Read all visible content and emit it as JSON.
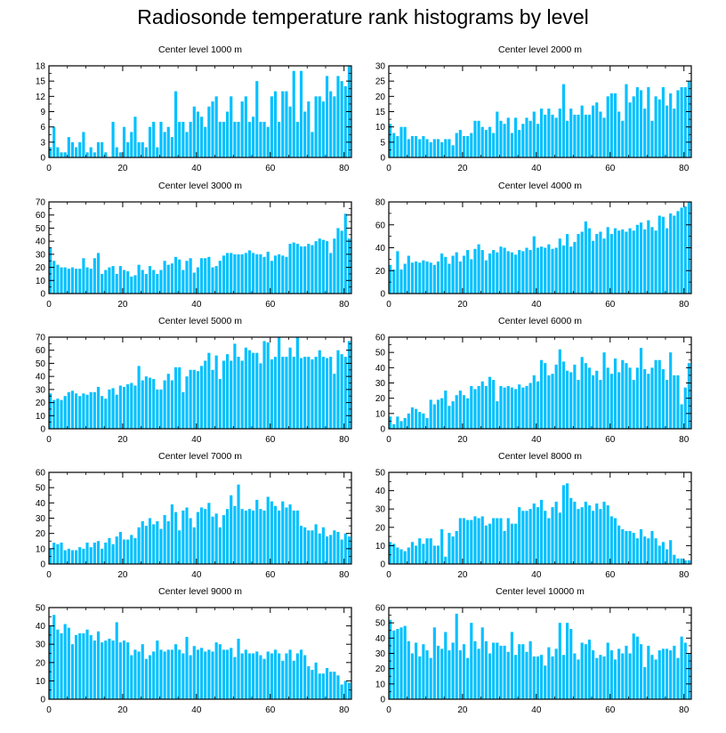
{
  "title": "Radiosonde temperature rank histograms by level",
  "bar_color": "#00c0ff",
  "chart_data": [
    {
      "type": "bar",
      "title": "Center level 1000 m",
      "xlim": [
        0,
        82
      ],
      "ylim": [
        0,
        18
      ],
      "xticks": [
        0,
        20,
        40,
        60,
        80
      ],
      "yticks": [
        0,
        3,
        6,
        9,
        12,
        15,
        18
      ],
      "values": [
        2,
        6,
        2,
        1,
        1,
        4,
        3,
        2,
        3,
        5,
        1,
        2,
        1,
        3,
        3,
        1,
        0,
        7,
        2,
        1,
        6,
        3,
        5,
        8,
        3,
        3,
        2,
        6,
        7,
        2,
        7,
        5,
        6,
        4,
        13,
        7,
        7,
        5,
        7,
        10,
        9,
        8,
        6,
        10,
        11,
        12,
        7,
        7,
        9,
        12,
        7,
        7,
        11,
        12,
        7,
        8,
        15,
        7,
        7,
        6,
        12,
        13,
        7,
        13,
        13,
        10,
        17,
        7,
        17,
        9,
        11,
        5,
        12,
        12,
        11,
        16,
        13,
        12,
        16,
        15,
        14,
        18
      ]
    },
    {
      "type": "bar",
      "title": "Center level 2000 m",
      "xlim": [
        0,
        82
      ],
      "ylim": [
        0,
        30
      ],
      "xticks": [
        0,
        20,
        40,
        60,
        80
      ],
      "yticks": [
        0,
        5,
        10,
        15,
        20,
        25,
        30
      ],
      "values": [
        11,
        8,
        7,
        10,
        10,
        6,
        7,
        7,
        6,
        7,
        6,
        5,
        6,
        6,
        5,
        6,
        6,
        4,
        8,
        9,
        7,
        7,
        8,
        12,
        12,
        10,
        9,
        10,
        8,
        15,
        12,
        11,
        13,
        8,
        13,
        9,
        11,
        13,
        12,
        15,
        11,
        16,
        14,
        16,
        14,
        13,
        16,
        24,
        12,
        16,
        14,
        14,
        17,
        14,
        14,
        17,
        18,
        15,
        13,
        20,
        21,
        21,
        15,
        12,
        24,
        18,
        20,
        23,
        22,
        16,
        23,
        12,
        20,
        19,
        23,
        17,
        21,
        16,
        22,
        23,
        23,
        25
      ]
    },
    {
      "type": "bar",
      "title": "Center level 3000 m",
      "xlim": [
        0,
        82
      ],
      "ylim": [
        0,
        70
      ],
      "xticks": [
        0,
        20,
        40,
        60,
        80
      ],
      "yticks": [
        0,
        10,
        20,
        30,
        40,
        50,
        60,
        70
      ],
      "values": [
        35,
        25,
        22,
        20,
        20,
        19,
        20,
        19,
        19,
        27,
        20,
        19,
        27,
        31,
        15,
        18,
        20,
        21,
        15,
        21,
        18,
        17,
        13,
        14,
        22,
        18,
        15,
        21,
        18,
        15,
        18,
        25,
        22,
        23,
        28,
        26,
        18,
        25,
        27,
        16,
        20,
        27,
        27,
        28,
        20,
        21,
        25,
        29,
        31,
        31,
        30,
        30,
        30,
        31,
        33,
        31,
        30,
        30,
        28,
        32,
        25,
        29,
        30,
        29,
        28,
        38,
        39,
        38,
        36,
        36,
        38,
        37,
        40,
        42,
        41,
        40,
        31,
        42,
        50,
        48,
        61,
        42
      ]
    },
    {
      "type": "bar",
      "title": "Center level 4000 m",
      "xlim": [
        0,
        82
      ],
      "ylim": [
        0,
        80
      ],
      "xticks": [
        0,
        20,
        40,
        60,
        80
      ],
      "yticks": [
        0,
        20,
        40,
        60,
        80
      ],
      "values": [
        25,
        21,
        37,
        21,
        26,
        33,
        27,
        28,
        27,
        29,
        28,
        27,
        25,
        28,
        35,
        32,
        26,
        33,
        36,
        28,
        33,
        38,
        30,
        39,
        43,
        38,
        29,
        35,
        38,
        36,
        41,
        40,
        37,
        36,
        34,
        38,
        37,
        40,
        38,
        50,
        40,
        41,
        40,
        43,
        39,
        40,
        48,
        42,
        52,
        41,
        45,
        52,
        54,
        63,
        57,
        46,
        52,
        54,
        48,
        58,
        52,
        57,
        55,
        56,
        54,
        57,
        55,
        60,
        62,
        56,
        64,
        58,
        55,
        68,
        67,
        57,
        70,
        68,
        72,
        75,
        76,
        80
      ]
    },
    {
      "type": "bar",
      "title": "Center level 5000 m",
      "xlim": [
        0,
        82
      ],
      "ylim": [
        0,
        70
      ],
      "xticks": [
        0,
        20,
        40,
        60,
        80
      ],
      "yticks": [
        0,
        10,
        20,
        30,
        40,
        50,
        60,
        70
      ],
      "values": [
        27,
        22,
        23,
        22,
        25,
        28,
        29,
        27,
        25,
        27,
        26,
        28,
        28,
        32,
        25,
        23,
        30,
        31,
        26,
        33,
        32,
        34,
        35,
        33,
        48,
        37,
        40,
        39,
        38,
        30,
        30,
        37,
        42,
        37,
        47,
        47,
        28,
        40,
        45,
        45,
        44,
        48,
        52,
        58,
        45,
        56,
        38,
        52,
        57,
        52,
        65,
        55,
        52,
        62,
        60,
        58,
        58,
        50,
        67,
        66,
        53,
        55,
        70,
        55,
        55,
        62,
        55,
        70,
        54,
        55,
        55,
        53,
        55,
        60,
        55,
        54,
        55,
        42,
        60,
        57,
        55,
        67
      ]
    },
    {
      "type": "bar",
      "title": "Center level 6000 m",
      "xlim": [
        0,
        82
      ],
      "ylim": [
        0,
        60
      ],
      "xticks": [
        0,
        20,
        40,
        60,
        80
      ],
      "yticks": [
        0,
        10,
        20,
        30,
        40,
        50,
        60
      ],
      "values": [
        8,
        3,
        8,
        5,
        7,
        10,
        14,
        13,
        11,
        10,
        7,
        19,
        16,
        19,
        20,
        25,
        15,
        18,
        22,
        25,
        22,
        20,
        28,
        26,
        28,
        31,
        28,
        34,
        32,
        18,
        28,
        27,
        28,
        27,
        26,
        29,
        27,
        28,
        30,
        35,
        31,
        45,
        43,
        35,
        36,
        42,
        52,
        44,
        38,
        37,
        42,
        32,
        47,
        43,
        40,
        35,
        38,
        32,
        50,
        40,
        36,
        46,
        37,
        45,
        43,
        40,
        32,
        40,
        53,
        39,
        36,
        40,
        45,
        45,
        39,
        32,
        50,
        35,
        35,
        16,
        27,
        43
      ]
    },
    {
      "type": "bar",
      "title": "Center level 7000 m",
      "xlim": [
        0,
        82
      ],
      "ylim": [
        0,
        60
      ],
      "xticks": [
        0,
        20,
        40,
        60,
        80
      ],
      "yticks": [
        0,
        10,
        20,
        30,
        40,
        50,
        60
      ],
      "values": [
        10,
        14,
        13,
        14,
        9,
        10,
        9,
        9,
        11,
        10,
        14,
        11,
        14,
        15,
        10,
        14,
        17,
        13,
        18,
        21,
        16,
        16,
        19,
        17,
        24,
        28,
        25,
        30,
        26,
        28,
        23,
        32,
        28,
        39,
        34,
        22,
        35,
        37,
        30,
        24,
        34,
        37,
        36,
        40,
        31,
        33,
        24,
        32,
        36,
        45,
        38,
        52,
        36,
        35,
        36,
        35,
        42,
        36,
        35,
        44,
        41,
        38,
        35,
        41,
        37,
        39,
        35,
        35,
        25,
        24,
        22,
        22,
        26,
        20,
        24,
        18,
        19,
        22,
        21,
        16,
        20,
        18
      ]
    },
    {
      "type": "bar",
      "title": "Center level 8000 m",
      "xlim": [
        0,
        82
      ],
      "ylim": [
        0,
        50
      ],
      "xticks": [
        0,
        20,
        40,
        60,
        80
      ],
      "yticks": [
        0,
        10,
        20,
        30,
        40,
        50
      ],
      "values": [
        12,
        11,
        9,
        8,
        7,
        9,
        12,
        10,
        14,
        11,
        14,
        14,
        10,
        10,
        19,
        4,
        17,
        15,
        18,
        25,
        25,
        24,
        24,
        26,
        25,
        26,
        21,
        22,
        25,
        25,
        25,
        18,
        25,
        22,
        22,
        31,
        29,
        29,
        30,
        33,
        31,
        35,
        29,
        25,
        31,
        34,
        28,
        43,
        44,
        36,
        34,
        30,
        31,
        34,
        32,
        29,
        33,
        30,
        34,
        32,
        26,
        25,
        21,
        19,
        18,
        18,
        17,
        14,
        19,
        15,
        14,
        18,
        14,
        10,
        12,
        8,
        13,
        5,
        3,
        3,
        2,
        2
      ]
    },
    {
      "type": "bar",
      "title": "Center level 9000 m",
      "xlim": [
        0,
        82
      ],
      "ylim": [
        0,
        50
      ],
      "xticks": [
        0,
        20,
        40,
        60,
        80
      ],
      "yticks": [
        0,
        10,
        20,
        30,
        40,
        50
      ],
      "values": [
        40,
        46,
        38,
        36,
        41,
        39,
        30,
        35,
        36,
        36,
        38,
        35,
        32,
        37,
        31,
        32,
        33,
        32,
        42,
        31,
        32,
        31,
        24,
        27,
        26,
        30,
        22,
        24,
        26,
        32,
        27,
        26,
        27,
        27,
        30,
        27,
        25,
        34,
        24,
        29,
        27,
        28,
        26,
        27,
        26,
        31,
        30,
        27,
        27,
        28,
        23,
        33,
        25,
        27,
        25,
        25,
        26,
        24,
        22,
        26,
        25,
        27,
        25,
        21,
        25,
        27,
        21,
        25,
        27,
        24,
        18,
        16,
        20,
        14,
        14,
        17,
        15,
        15,
        13,
        8,
        10,
        9
      ]
    },
    {
      "type": "bar",
      "title": "Center level 10000 m",
      "xlim": [
        0,
        82
      ],
      "ylim": [
        0,
        60
      ],
      "xticks": [
        0,
        20,
        40,
        60,
        80
      ],
      "yticks": [
        0,
        10,
        20,
        30,
        40,
        50,
        60
      ],
      "values": [
        52,
        45,
        46,
        47,
        48,
        38,
        30,
        37,
        28,
        36,
        32,
        27,
        47,
        35,
        33,
        44,
        32,
        37,
        56,
        32,
        36,
        27,
        50,
        38,
        33,
        47,
        38,
        30,
        37,
        37,
        35,
        35,
        31,
        44,
        29,
        36,
        36,
        31,
        38,
        28,
        28,
        29,
        22,
        34,
        28,
        33,
        50,
        29,
        50,
        46,
        30,
        26,
        37,
        36,
        39,
        32,
        27,
        29,
        28,
        37,
        32,
        26,
        33,
        30,
        35,
        30,
        43,
        41,
        36,
        21,
        35,
        29,
        26,
        32,
        33,
        33,
        32,
        35,
        27,
        41,
        37,
        30
      ]
    }
  ]
}
